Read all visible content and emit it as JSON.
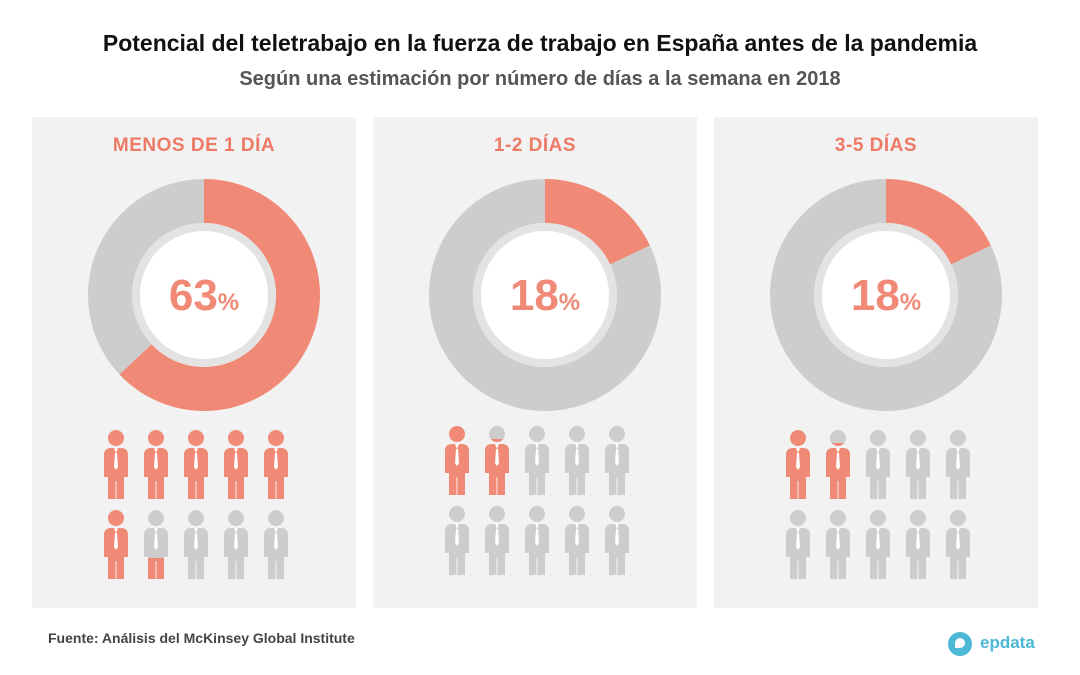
{
  "header": {
    "title": "Potencial del teletrabajo en la fuerza de trabajo en España antes de la pandemia",
    "subtitle": "Según una estimación por número de días a la semana en 2018"
  },
  "footer": {
    "source": "Fuente: Análisis del McKinsey Global Institute",
    "brand": "epdata"
  },
  "colors": {
    "accent": "#f08a77",
    "panel_title": "#ee7a66",
    "gray": "#cdcdcd",
    "panel_bg": "#f2f2f2"
  },
  "chart_data": [
    {
      "type": "pie",
      "title": "MENOS DE 1 DÍA",
      "value_label": "63",
      "unit": "%",
      "values": [
        63,
        37
      ],
      "pictogram": {
        "total": 10,
        "filled": 6.3
      }
    },
    {
      "type": "pie",
      "title": "1-2 DÍAS",
      "value_label": "18",
      "unit": "%",
      "values": [
        18,
        82
      ],
      "pictogram": {
        "total": 10,
        "filled": 1.8
      }
    },
    {
      "type": "pie",
      "title": "3-5 DÍAS",
      "value_label": "18",
      "unit": "%",
      "values": [
        18,
        82
      ],
      "pictogram": {
        "total": 10,
        "filled": 1.8
      }
    }
  ]
}
